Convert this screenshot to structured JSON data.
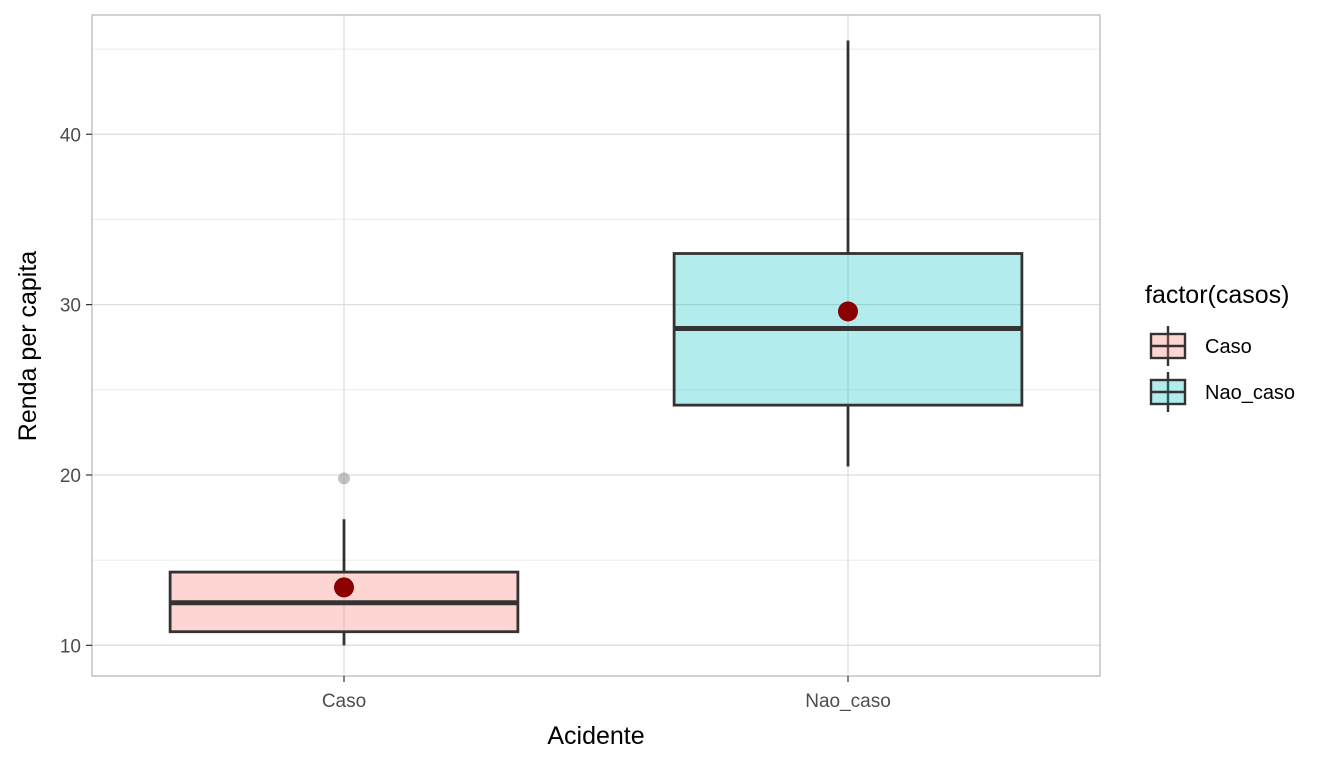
{
  "chart_data": {
    "type": "boxplot",
    "xlabel": "Acidente",
    "ylabel": "Renda per capita",
    "categories": [
      "Caso",
      "Nao_caso"
    ],
    "ylim": [
      8.2,
      47.0
    ],
    "yticks": [
      10,
      20,
      30,
      40
    ],
    "grid": true,
    "legend": {
      "title": "factor(casos)",
      "placement": "right",
      "entries": [
        {
          "label": "Caso",
          "color": "#f8766d"
        },
        {
          "label": "Nao_caso",
          "color": "#00bfc4"
        }
      ]
    },
    "boxes": [
      {
        "category": "Caso",
        "whisker_low": 10.0,
        "q1": 10.8,
        "median": 12.5,
        "q3": 14.3,
        "whisker_high": 17.4,
        "mean": 13.4,
        "outliers": [
          19.8
        ],
        "fill": "#f8766d"
      },
      {
        "category": "Nao_caso",
        "whisker_low": 20.5,
        "q1": 24.1,
        "median": 28.6,
        "q3": 33.0,
        "whisker_high": 45.5,
        "mean": 29.6,
        "outliers": [],
        "fill": "#00bfc4"
      }
    ],
    "mean_color": "#8b0000",
    "outlier_color": "#999999"
  }
}
